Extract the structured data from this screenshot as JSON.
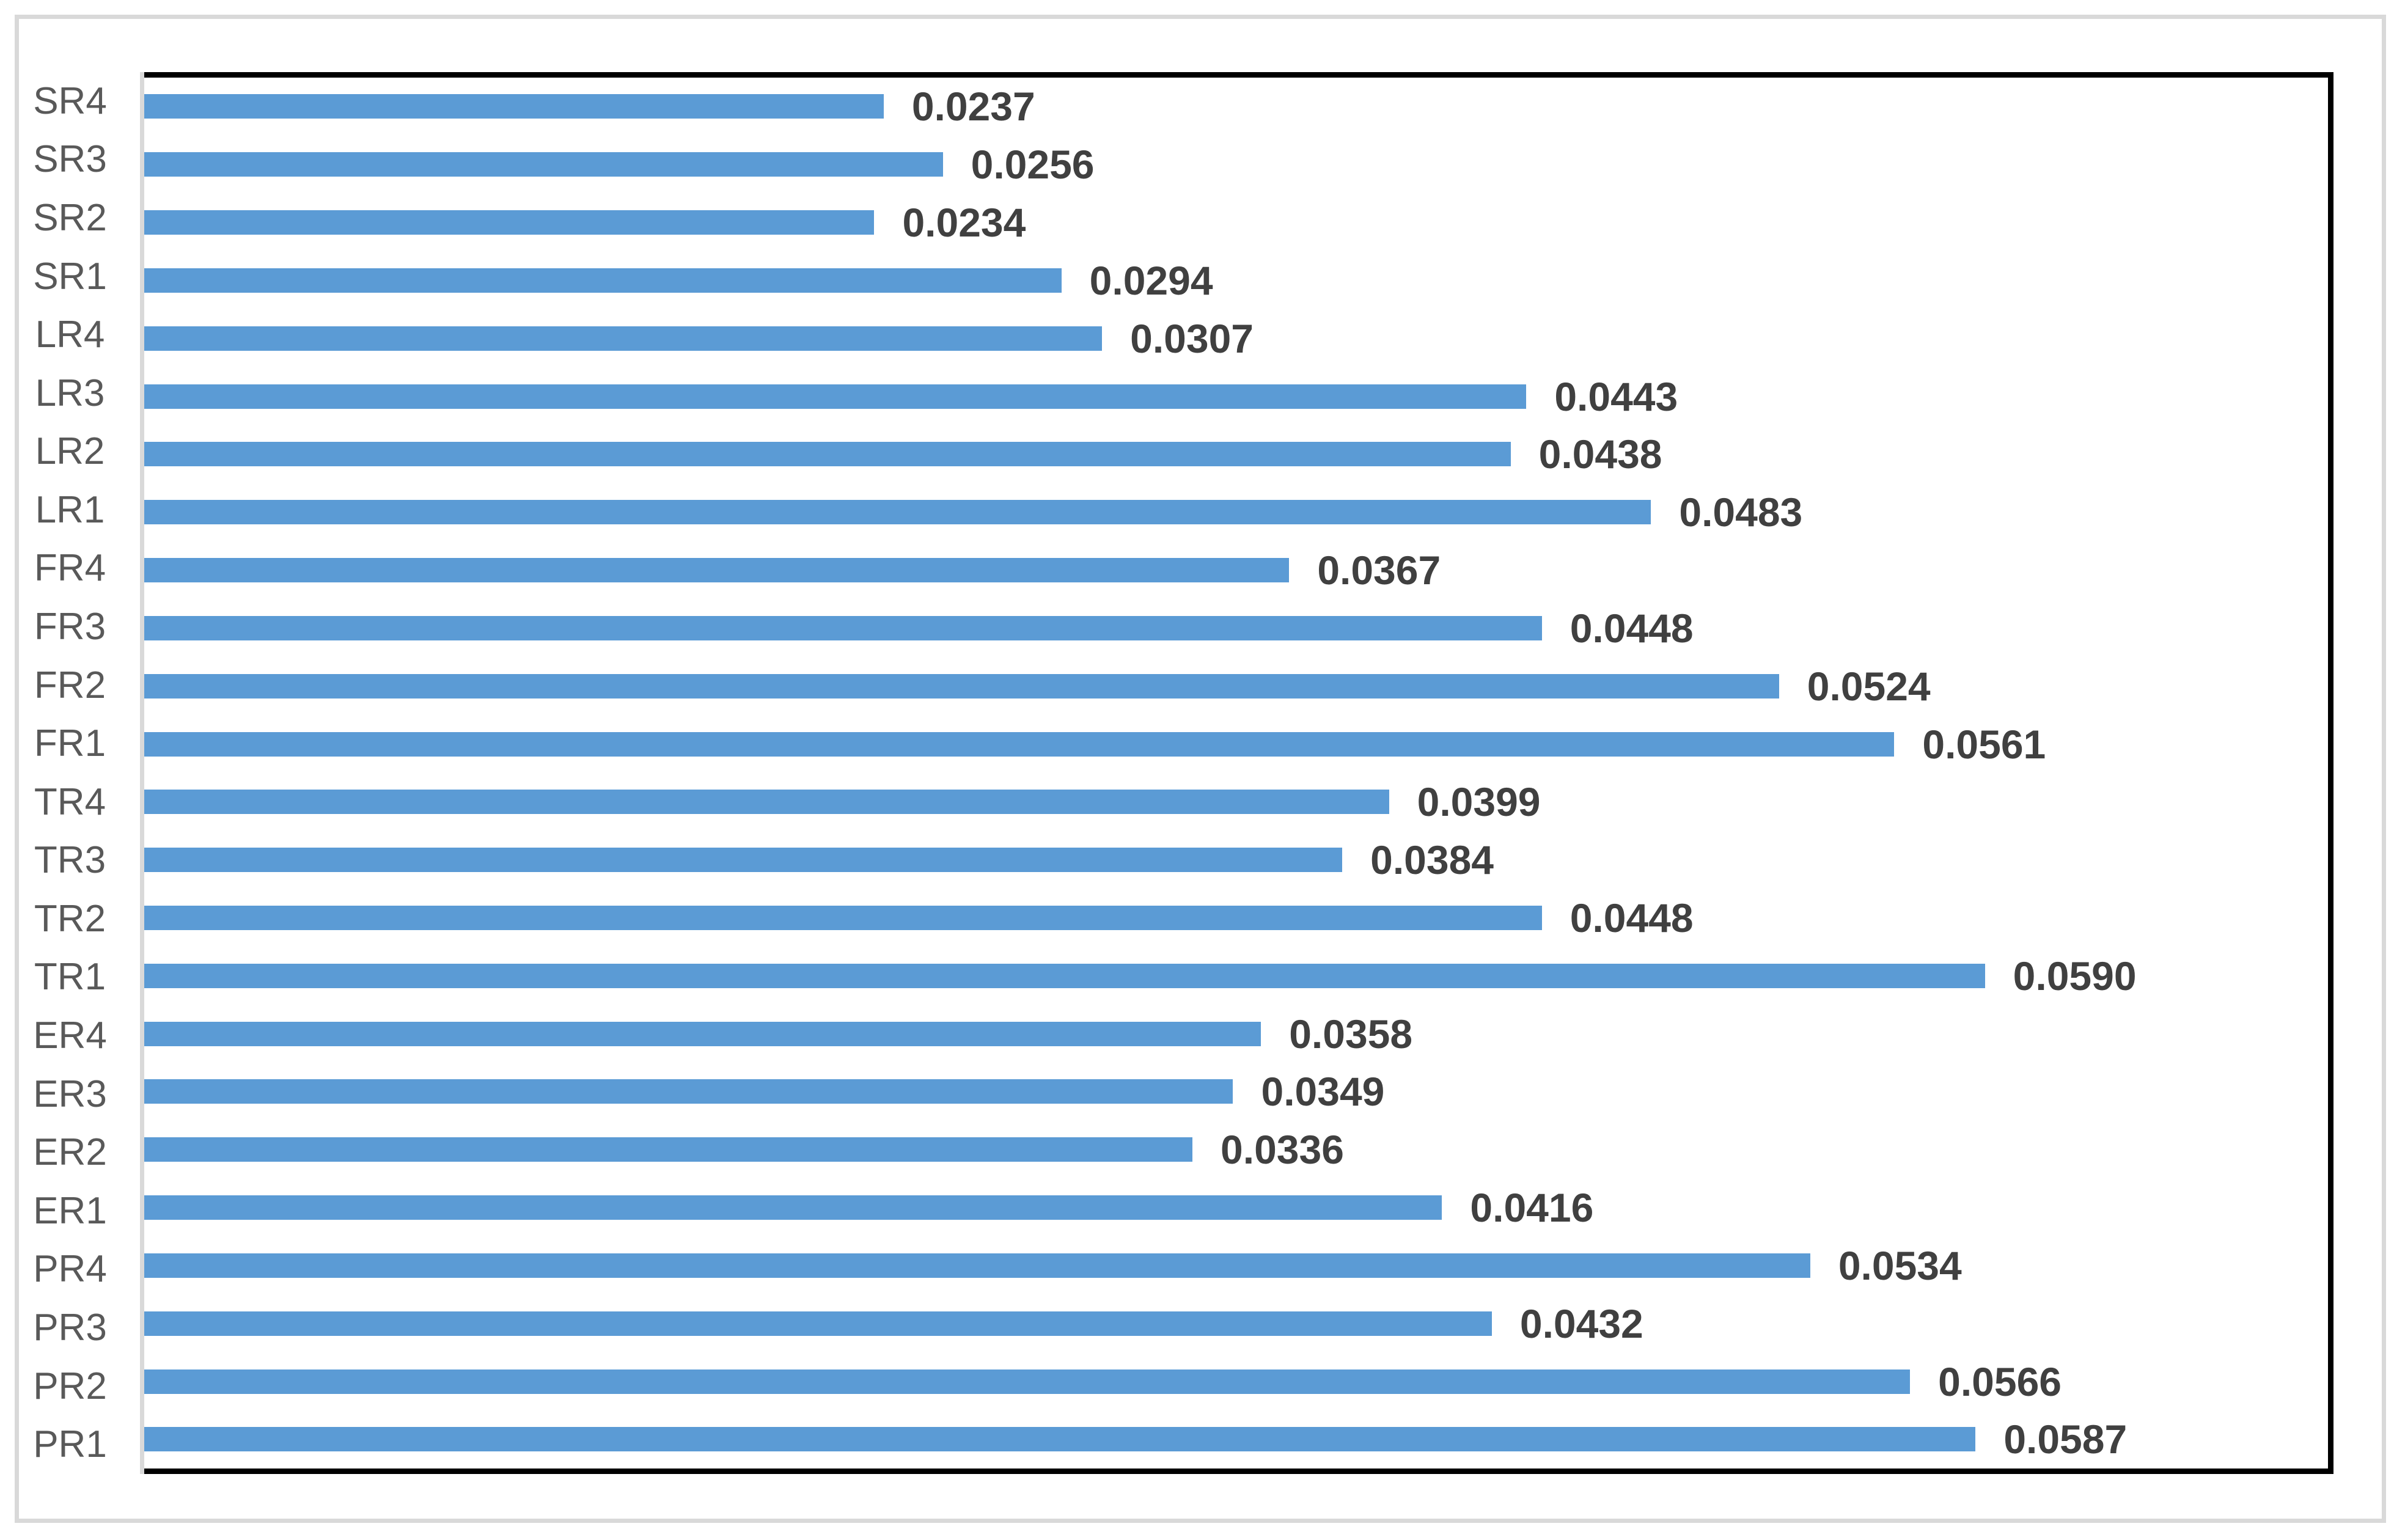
{
  "chart_data": {
    "type": "bar",
    "orientation": "horizontal",
    "title": "",
    "xlabel": "",
    "ylabel": "",
    "categories": [
      "SR4",
      "SR3",
      "SR2",
      "SR1",
      "LR4",
      "LR3",
      "LR2",
      "LR1",
      "FR4",
      "FR3",
      "FR2",
      "FR1",
      "TR4",
      "TR3",
      "TR2",
      "TR1",
      "ER4",
      "ER3",
      "ER2",
      "ER1",
      "PR4",
      "PR3",
      "PR2",
      "PR1"
    ],
    "values": [
      0.0237,
      0.0256,
      0.0234,
      0.0294,
      0.0307,
      0.0443,
      0.0438,
      0.0483,
      0.0367,
      0.0448,
      0.0524,
      0.0561,
      0.0399,
      0.0384,
      0.0448,
      0.059,
      0.0358,
      0.0349,
      0.0336,
      0.0416,
      0.0534,
      0.0432,
      0.0566,
      0.0587
    ],
    "labels": [
      "0.0237",
      "0.0256",
      "0.0234",
      "0.0294",
      "0.0307",
      "0.0443",
      "0.0438",
      "0.0483",
      "0.0367",
      "0.0448",
      "0.0524",
      "0.0561",
      "0.0399",
      "0.0384",
      "0.0448",
      "0.0590",
      "0.0358",
      "0.0349",
      "0.0336",
      "0.0416",
      "0.0534",
      "0.0432",
      "0.0566",
      "0.0587"
    ],
    "xlim": [
      0,
      0.07
    ],
    "grid": false,
    "legend": "none",
    "data_labels": "outside-end",
    "colors": {
      "bar": "#5b9bd5",
      "value_label": "#404040",
      "category_label": "#595959",
      "plot_border": "#000000",
      "axis_line": "#d9d9d9",
      "outer_border": "#d9d9d9",
      "background": "#ffffff"
    }
  }
}
